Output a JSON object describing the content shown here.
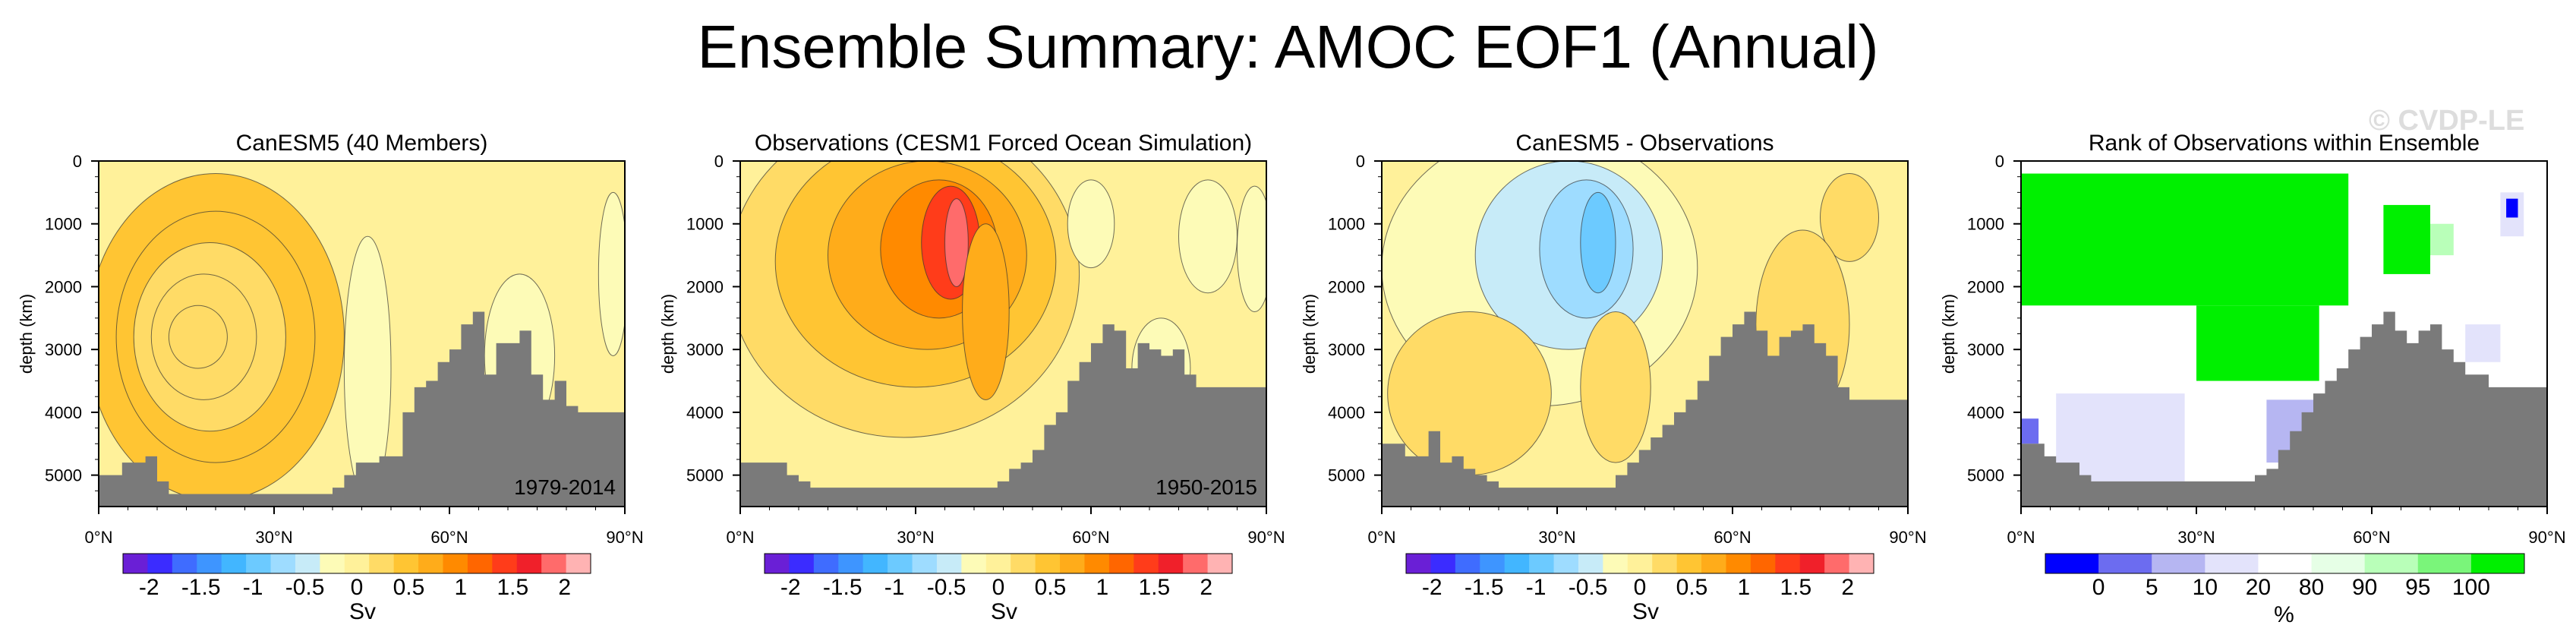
{
  "title": "Ensemble Summary: AMOC EOF1 (Annual)",
  "watermark": "© CVDP-LE",
  "colors": {
    "ground": "#7a7a7a",
    "sv_scale": [
      "#6a1fd6",
      "#3b2cff",
      "#3f6cff",
      "#3e95ff",
      "#42b6ff",
      "#6ccaff",
      "#9edcff",
      "#c7ebf8",
      "#fdfbb7",
      "#fff19a",
      "#ffdb66",
      "#ffc533",
      "#ffac1a",
      "#ff8a00",
      "#ff6600",
      "#ff3c1a",
      "#f0202a",
      "#ff6b6b",
      "#ffb3b3"
    ],
    "rank_scale": [
      "#0000ff",
      "#6c6cf0",
      "#b6b6f2",
      "#e3e3fb",
      "#ffffff",
      "#e6ffe6",
      "#b9ffb9",
      "#7af57a",
      "#00f000"
    ]
  },
  "chart_data": [
    {
      "type": "contour",
      "title": "CanESM5 (40 Members)",
      "period": "1979-2014",
      "xlabel": "",
      "ylabel": "depth (km)",
      "xticks": [
        "0°N",
        "30°N",
        "60°N",
        "90°N"
      ],
      "xtick_values": [
        0,
        30,
        60,
        90
      ],
      "yticks": [
        "0",
        "1000",
        "2000",
        "3000",
        "4000",
        "5000"
      ],
      "ytick_values": [
        0,
        1000,
        2000,
        3000,
        4000,
        5000
      ],
      "xlim": [
        0,
        90
      ],
      "ylim": [
        5500,
        0
      ],
      "colorbar": {
        "label": "Sv",
        "tick_labels": [
          "-2",
          "-1.5",
          "-1",
          "-0.5",
          "0",
          "0.5",
          "1",
          "1.5",
          "2"
        ],
        "tick_values": [
          -2,
          -1.5,
          -1,
          -0.5,
          0,
          0.5,
          1,
          1.5,
          2
        ],
        "range": [
          -2.25,
          2.25
        ]
      },
      "cells": [
        {
          "lat": 20,
          "depth": 2800,
          "value": 0.55,
          "rx": 22,
          "ry": 2600
        },
        {
          "lat": 20,
          "depth": 2800,
          "value": 0.42,
          "rx": 17,
          "ry": 2000
        },
        {
          "lat": 19,
          "depth": 2800,
          "value": 0.32,
          "rx": 13,
          "ry": 1500
        },
        {
          "lat": 18,
          "depth": 2800,
          "value": 0.22,
          "rx": 9,
          "ry": 1000
        },
        {
          "lat": 17,
          "depth": 2800,
          "value": 0.12,
          "rx": 5,
          "ry": 500
        },
        {
          "lat": 46,
          "depth": 3300,
          "value": -0.2,
          "rx": 4,
          "ry": 2100
        },
        {
          "lat": 72,
          "depth": 3100,
          "value": -0.2,
          "rx": 6,
          "ry": 1300
        },
        {
          "lat": 88,
          "depth": 1800,
          "value": -0.2,
          "rx": 2.5,
          "ry": 1300
        }
      ],
      "bathymetry": {
        "lat": [
          0,
          2,
          4,
          6,
          8,
          10,
          12,
          14,
          16,
          18,
          20,
          22,
          24,
          26,
          28,
          30,
          32,
          34,
          36,
          38,
          40,
          42,
          44,
          46,
          48,
          50,
          52,
          54,
          56,
          58,
          60,
          62,
          64,
          66,
          68,
          70,
          72,
          74,
          76,
          78,
          80,
          82,
          84,
          86,
          88,
          90
        ],
        "depth": [
          5000,
          5000,
          4800,
          4800,
          4700,
          5100,
          5300,
          5300,
          5300,
          5300,
          5300,
          5300,
          5300,
          5300,
          5300,
          5300,
          5300,
          5300,
          5300,
          5300,
          5200,
          5000,
          4800,
          4800,
          4700,
          4700,
          4000,
          3600,
          3500,
          3200,
          3000,
          2600,
          2400,
          3400,
          2900,
          2900,
          2700,
          3400,
          3800,
          3500,
          3900,
          4000,
          4000,
          4000,
          4000,
          4000
        ]
      }
    },
    {
      "type": "contour",
      "title": "Observations (CESM1 Forced Ocean Simulation)",
      "period": "1950-2015",
      "xlabel": "",
      "ylabel": "depth (km)",
      "xticks": [
        "0°N",
        "30°N",
        "60°N",
        "90°N"
      ],
      "xtick_values": [
        0,
        30,
        60,
        90
      ],
      "yticks": [
        "0",
        "1000",
        "2000",
        "3000",
        "4000",
        "5000"
      ],
      "ytick_values": [
        0,
        1000,
        2000,
        3000,
        4000,
        5000
      ],
      "xlim": [
        0,
        90
      ],
      "ylim": [
        5500,
        0
      ],
      "colorbar": {
        "label": "Sv",
        "tick_labels": [
          "-2",
          "-1.5",
          "-1",
          "-0.5",
          "0",
          "0.5",
          "1",
          "1.5",
          "2"
        ],
        "tick_values": [
          -2,
          -1.5,
          -1,
          -0.5,
          0,
          0.5,
          1,
          1.5,
          2
        ],
        "range": [
          -2.25,
          2.25
        ]
      },
      "cells": [
        {
          "lat": 28,
          "depth": 1800,
          "value": 0.3,
          "rx": 30,
          "ry": 2600
        },
        {
          "lat": 30,
          "depth": 1600,
          "value": 0.55,
          "rx": 24,
          "ry": 2000
        },
        {
          "lat": 32,
          "depth": 1500,
          "value": 0.8,
          "rx": 17,
          "ry": 1500
        },
        {
          "lat": 34,
          "depth": 1400,
          "value": 1.05,
          "rx": 10,
          "ry": 1100
        },
        {
          "lat": 36,
          "depth": 1300,
          "value": 1.4,
          "rx": 5,
          "ry": 900
        },
        {
          "lat": 37,
          "depth": 1300,
          "value": 1.8,
          "rx": 2,
          "ry": 700
        },
        {
          "lat": 60,
          "depth": 1000,
          "value": -0.15,
          "rx": 4,
          "ry": 700
        },
        {
          "lat": 80,
          "depth": 1200,
          "value": -0.15,
          "rx": 5,
          "ry": 900
        },
        {
          "lat": 72,
          "depth": 3300,
          "value": -0.15,
          "rx": 5,
          "ry": 800
        },
        {
          "lat": 88,
          "depth": 1400,
          "value": -0.15,
          "rx": 3,
          "ry": 1000
        },
        {
          "lat": 42,
          "depth": 2400,
          "value": 0.6,
          "rx": 4,
          "ry": 1400
        }
      ],
      "bathymetry": {
        "lat": [
          0,
          2,
          4,
          6,
          8,
          10,
          12,
          14,
          16,
          18,
          20,
          22,
          24,
          26,
          28,
          30,
          32,
          34,
          36,
          38,
          40,
          42,
          44,
          46,
          48,
          50,
          52,
          54,
          56,
          58,
          60,
          62,
          64,
          66,
          68,
          70,
          72,
          74,
          76,
          78,
          80,
          82,
          84,
          86,
          88,
          90
        ],
        "depth": [
          4800,
          4800,
          4800,
          4800,
          5000,
          5100,
          5200,
          5200,
          5200,
          5200,
          5200,
          5200,
          5200,
          5200,
          5200,
          5200,
          5200,
          5200,
          5200,
          5200,
          5200,
          5200,
          5100,
          4900,
          4800,
          4600,
          4200,
          4000,
          3500,
          3200,
          2900,
          2600,
          2700,
          3300,
          2900,
          3000,
          3100,
          3000,
          3400,
          3600,
          3600,
          3600,
          3600,
          3600,
          3600,
          3600
        ]
      }
    },
    {
      "type": "contour",
      "title": "CanESM5 - Observations",
      "period": "",
      "xlabel": "",
      "ylabel": "depth (km)",
      "xticks": [
        "0°N",
        "30°N",
        "60°N",
        "90°N"
      ],
      "xtick_values": [
        0,
        30,
        60,
        90
      ],
      "yticks": [
        "0",
        "1000",
        "2000",
        "3000",
        "4000",
        "5000"
      ],
      "ytick_values": [
        0,
        1000,
        2000,
        3000,
        4000,
        5000
      ],
      "xlim": [
        0,
        90
      ],
      "ylim": [
        5500,
        0
      ],
      "colorbar": {
        "label": "Sv",
        "tick_labels": [
          "-2",
          "-1.5",
          "-1",
          "-0.5",
          "0",
          "0.5",
          "1",
          "1.5",
          "2"
        ],
        "tick_values": [
          -2,
          -1.5,
          -1,
          -0.5,
          0,
          0.5,
          1,
          1.5,
          2
        ],
        "range": [
          -2.25,
          2.25
        ]
      },
      "cells": [
        {
          "lat": 27,
          "depth": 1700,
          "value": -0.3,
          "rx": 27,
          "ry": 2200
        },
        {
          "lat": 32,
          "depth": 1500,
          "value": -0.5,
          "rx": 16,
          "ry": 1500
        },
        {
          "lat": 35,
          "depth": 1400,
          "value": -0.7,
          "rx": 8,
          "ry": 1100
        },
        {
          "lat": 37,
          "depth": 1300,
          "value": -0.95,
          "rx": 3,
          "ry": 800
        },
        {
          "lat": 15,
          "depth": 3700,
          "value": 0.15,
          "rx": 14,
          "ry": 1300
        },
        {
          "lat": 40,
          "depth": 3600,
          "value": 0.15,
          "rx": 6,
          "ry": 1200
        },
        {
          "lat": 80,
          "depth": 900,
          "value": 0.3,
          "rx": 5,
          "ry": 700
        },
        {
          "lat": 72,
          "depth": 2600,
          "value": 0.15,
          "rx": 8,
          "ry": 1500
        }
      ],
      "bathymetry": {
        "lat": [
          0,
          2,
          4,
          6,
          8,
          10,
          12,
          14,
          16,
          18,
          20,
          22,
          24,
          26,
          28,
          30,
          32,
          34,
          36,
          38,
          40,
          42,
          44,
          46,
          48,
          50,
          52,
          54,
          56,
          58,
          60,
          62,
          64,
          66,
          68,
          70,
          72,
          74,
          76,
          78,
          80,
          82,
          84,
          86,
          88,
          90
        ],
        "depth": [
          4500,
          4500,
          4700,
          4700,
          4300,
          4800,
          4700,
          4900,
          5000,
          5100,
          5200,
          5200,
          5200,
          5200,
          5200,
          5200,
          5200,
          5200,
          5200,
          5200,
          5000,
          4800,
          4600,
          4400,
          4200,
          4000,
          3800,
          3500,
          3100,
          2800,
          2600,
          2400,
          2700,
          3100,
          2800,
          2700,
          2600,
          2900,
          3100,
          3600,
          3800,
          3800,
          3800,
          3800,
          3800,
          3800
        ]
      }
    },
    {
      "type": "heatmap",
      "title": "Rank of Observations within Ensemble",
      "period": "",
      "xlabel": "",
      "ylabel": "depth (km)",
      "xticks": [
        "0°N",
        "30°N",
        "60°N",
        "90°N"
      ],
      "xtick_values": [
        0,
        30,
        60,
        90
      ],
      "yticks": [
        "0",
        "1000",
        "2000",
        "3000",
        "4000",
        "5000"
      ],
      "ytick_values": [
        0,
        1000,
        2000,
        3000,
        4000,
        5000
      ],
      "xlim": [
        0,
        90
      ],
      "ylim": [
        5500,
        0
      ],
      "colorbar": {
        "label": "%",
        "tick_labels": [
          "0",
          "5",
          "10",
          "20",
          "80",
          "90",
          "95",
          "100"
        ],
        "bins": 9
      },
      "rects": [
        {
          "lat0": 0,
          "lat1": 56,
          "d0": 200,
          "d1": 2300,
          "bin": 8
        },
        {
          "lat0": 30,
          "lat1": 51,
          "d0": 2300,
          "d1": 3500,
          "bin": 8
        },
        {
          "lat0": 62,
          "lat1": 70,
          "d0": 700,
          "d1": 1800,
          "bin": 8
        },
        {
          "lat0": 70,
          "lat1": 74,
          "d0": 1000,
          "d1": 1500,
          "bin": 6
        },
        {
          "lat0": 82,
          "lat1": 86,
          "d0": 500,
          "d1": 1200,
          "bin": 3
        },
        {
          "lat0": 83,
          "lat1": 85,
          "d0": 600,
          "d1": 900,
          "bin": 0
        },
        {
          "lat0": 6,
          "lat1": 28,
          "d0": 3700,
          "d1": 5100,
          "bin": 3
        },
        {
          "lat0": 0,
          "lat1": 3,
          "d0": 4100,
          "d1": 4500,
          "bin": 1
        },
        {
          "lat0": 45,
          "lat1": 50,
          "d0": 3900,
          "d1": 4500,
          "bin": 0
        },
        {
          "lat0": 42,
          "lat1": 52,
          "d0": 3800,
          "d1": 4800,
          "bin": 2
        },
        {
          "lat0": 76,
          "lat1": 82,
          "d0": 2600,
          "d1": 3200,
          "bin": 3
        }
      ],
      "bathymetry": {
        "lat": [
          0,
          2,
          4,
          6,
          8,
          10,
          12,
          14,
          16,
          18,
          20,
          22,
          24,
          26,
          28,
          30,
          32,
          34,
          36,
          38,
          40,
          42,
          44,
          46,
          48,
          50,
          52,
          54,
          56,
          58,
          60,
          62,
          64,
          66,
          68,
          70,
          72,
          74,
          76,
          78,
          80,
          82,
          84,
          86,
          88,
          90
        ],
        "depth": [
          4500,
          4500,
          4700,
          4800,
          4800,
          5000,
          5100,
          5100,
          5100,
          5100,
          5100,
          5100,
          5100,
          5100,
          5100,
          5100,
          5100,
          5100,
          5100,
          5100,
          5000,
          4900,
          4600,
          4300,
          4000,
          3700,
          3500,
          3300,
          3000,
          2800,
          2600,
          2400,
          2700,
          2900,
          2700,
          2600,
          3000,
          3200,
          3400,
          3400,
          3600,
          3600,
          3600,
          3600,
          3600,
          3600
        ]
      }
    }
  ]
}
